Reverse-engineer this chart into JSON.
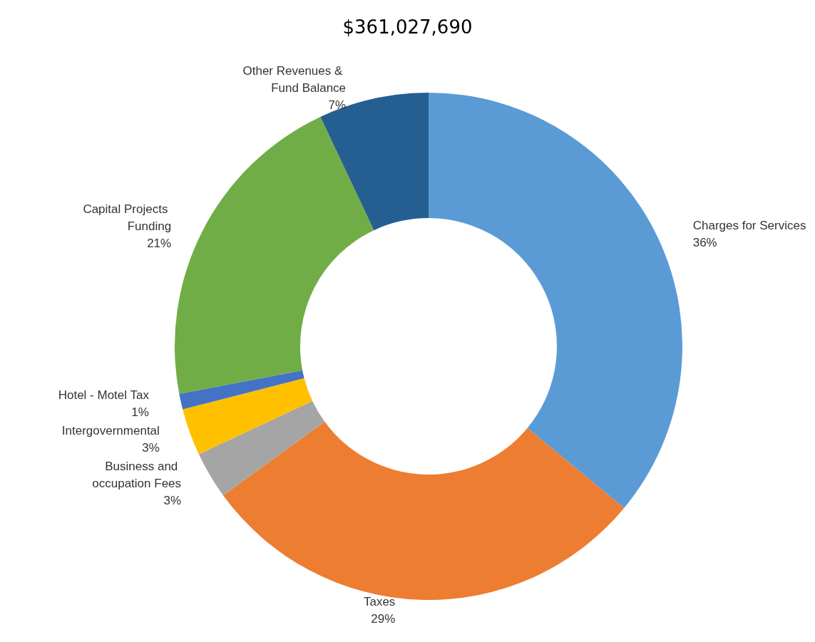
{
  "chart_data": {
    "type": "donut",
    "title": "$361,027,690",
    "categories": [
      "Charges for Services",
      "Taxes",
      "Business and occupation Fees",
      "Intergovernmental",
      "Hotel - Motel Tax",
      "Capital Projects Funding",
      "Other Revenues & Fund Balance"
    ],
    "values": [
      36,
      29,
      3,
      3,
      1,
      21,
      7
    ],
    "colors": [
      "#5b9bd5",
      "#ed7d31",
      "#a5a5a5",
      "#ffc000",
      "#4472c4",
      "#70ad47",
      "#255e91"
    ],
    "value_labels": [
      "36%",
      "29%",
      "3%",
      "3%",
      "1%",
      "21%",
      "7%"
    ],
    "legend": false
  }
}
